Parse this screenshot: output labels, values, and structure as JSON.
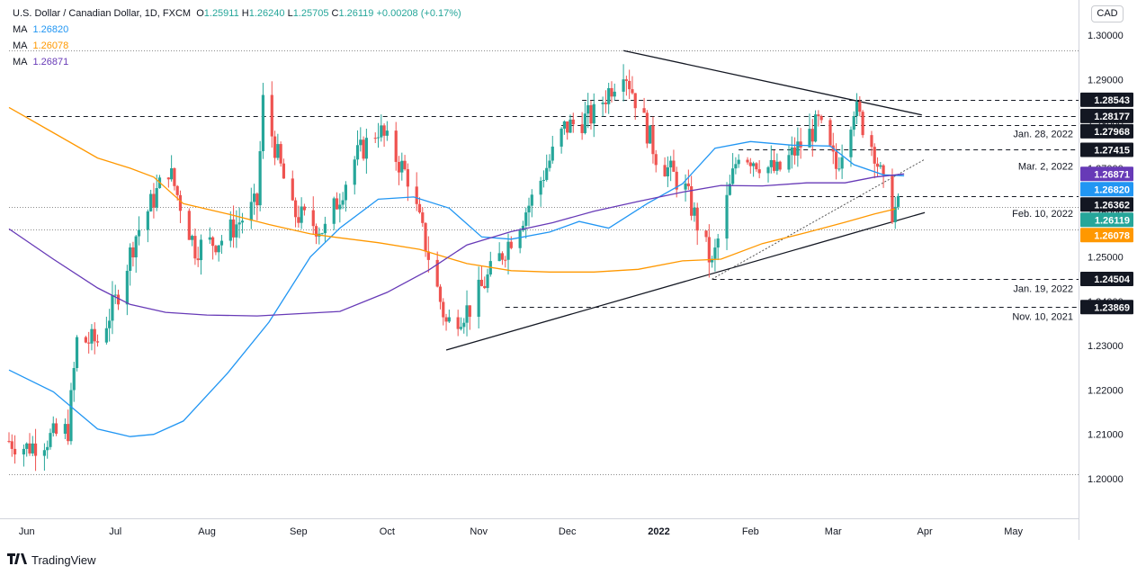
{
  "legend": {
    "symbol": "U.S. Dollar / Canadian Dollar, 1D, FXCM",
    "o": "1.25911",
    "h": "1.26240",
    "l": "1.25705",
    "c": "1.26119",
    "change": "+0.00208 (+0.17%)",
    "mas": [
      {
        "label": "MA",
        "value": "1.26820",
        "color": "#2196f3"
      },
      {
        "label": "MA",
        "value": "1.26078",
        "color": "#ff9800"
      },
      {
        "label": "MA",
        "value": "1.26871",
        "color": "#673ab7"
      }
    ]
  },
  "currency": "CAD",
  "footer": {
    "brand": "TradingView"
  },
  "chart_data": {
    "type": "candlestick",
    "y_axis": {
      "min": 1.195,
      "max": 1.305,
      "ticks": [
        "1.30000",
        "1.29000",
        "1.28000",
        "1.27000",
        "1.26000",
        "1.25000",
        "1.24000",
        "1.23000",
        "1.22000",
        "1.21000",
        "1.20000"
      ]
    },
    "x_axis": {
      "labels": [
        "Jun",
        "Jul",
        "Aug",
        "Sep",
        "Oct",
        "Nov",
        "Dec",
        "2022",
        "Feb",
        "Mar",
        "Apr",
        "May"
      ],
      "bold": [
        "2022"
      ]
    },
    "price_labels": [
      {
        "value": "1.28543",
        "bg": "#131722",
        "fg": "#ffffff",
        "price": 1.28543
      },
      {
        "value": "1.28177",
        "bg": "#131722",
        "fg": "#ffffff",
        "price": 1.28177
      },
      {
        "value": "1.27968",
        "bg": "#131722",
        "fg": "#ffffff",
        "price": 1.27968
      },
      {
        "value": "1.27415",
        "bg": "#131722",
        "fg": "#ffffff",
        "price": 1.27415
      },
      {
        "value": "1.26871",
        "bg": "#673ab7",
        "fg": "#ffffff",
        "price": 1.26871
      },
      {
        "value": "1.26820",
        "bg": "#2196f3",
        "fg": "#ffffff",
        "price": 1.2682
      },
      {
        "value": "1.26362",
        "bg": "#131722",
        "fg": "#ffffff",
        "price": 1.26362
      },
      {
        "value": "1.26119",
        "bg": "#26a69a",
        "fg": "#ffffff",
        "price": 1.26119
      },
      {
        "value": "1.26078",
        "bg": "#ff9800",
        "fg": "#ffffff",
        "price": 1.26078
      },
      {
        "value": "1.24504",
        "bg": "#131722",
        "fg": "#ffffff",
        "price": 1.24504
      },
      {
        "value": "1.23869",
        "bg": "#131722",
        "fg": "#ffffff",
        "price": 1.23869
      }
    ],
    "annotations": [
      {
        "text": "Jan. 28, 2022",
        "price": 1.2778
      },
      {
        "text": "Mar. 2, 2022",
        "price": 1.2705
      },
      {
        "text": "Feb. 10, 2022",
        "price": 1.2598
      },
      {
        "text": "Jan. 19, 2022",
        "price": 1.2429
      },
      {
        "text": "Nov. 10, 2021",
        "price": 1.2366
      }
    ],
    "hlines": [
      {
        "price": 1.28543,
        "from_date": "2021-12-06",
        "style": "dashed"
      },
      {
        "price": 1.28177,
        "from_date": "2021-06-01",
        "style": "dashed"
      },
      {
        "price": 1.27968,
        "from_date": "2021-11-29",
        "style": "dashed"
      },
      {
        "price": 1.27415,
        "from_date": "2022-01-28",
        "style": "dashed"
      },
      {
        "price": 1.26362,
        "from_date": "2022-02-10",
        "style": "dashed"
      },
      {
        "price": 1.24504,
        "from_date": "2022-01-19",
        "style": "dashed"
      },
      {
        "price": 1.23869,
        "from_date": "2021-11-10",
        "style": "dashed"
      },
      {
        "price": 1.2965,
        "from_date": "2021-05-26",
        "style": "dotted"
      },
      {
        "price": 1.26119,
        "from_date": "2021-05-26",
        "style": "dotted"
      },
      {
        "price": 1.25625,
        "from_date": "2021-05-26",
        "style": "dotted"
      },
      {
        "price": 1.201,
        "from_date": "2021-05-26",
        "style": "dotted"
      }
    ],
    "trendlines": [
      {
        "from": [
          "2021-12-20",
          1.2965
        ],
        "to": [
          "2022-03-31",
          1.282
        ],
        "style": "solid"
      },
      {
        "from": [
          "2021-10-21",
          1.229
        ],
        "to": [
          "2022-04-01",
          1.26
        ],
        "style": "solid"
      },
      {
        "from": [
          "2022-01-19",
          1.245
        ],
        "to": [
          "2022-04-01",
          1.272
        ],
        "style": "dotted"
      }
    ],
    "ma_series": [
      {
        "name": "MA 1.26820",
        "color": "#2196f3",
        "points": [
          [
            "2021-05-26",
            1.2245
          ],
          [
            "2021-06-10",
            1.2196
          ],
          [
            "2021-06-25",
            1.2112
          ],
          [
            "2021-07-06",
            1.2095
          ],
          [
            "2021-07-14",
            1.21
          ],
          [
            "2021-07-24",
            1.213
          ],
          [
            "2021-08-08",
            1.2238
          ],
          [
            "2021-08-22",
            1.2353
          ],
          [
            "2021-09-05",
            1.25
          ],
          [
            "2021-09-15",
            1.2565
          ],
          [
            "2021-09-28",
            1.263
          ],
          [
            "2021-10-10",
            1.2635
          ],
          [
            "2021-10-22",
            1.261
          ],
          [
            "2021-11-02",
            1.2545
          ],
          [
            "2021-11-12",
            1.254
          ],
          [
            "2021-11-25",
            1.2556
          ],
          [
            "2021-12-05",
            1.258
          ],
          [
            "2021-12-15",
            1.2565
          ],
          [
            "2021-12-28",
            1.262
          ],
          [
            "2022-01-09",
            1.2665
          ],
          [
            "2022-01-20",
            1.2745
          ],
          [
            "2022-02-01",
            1.276
          ],
          [
            "2022-02-15",
            1.2752
          ],
          [
            "2022-02-28",
            1.275
          ],
          [
            "2022-03-08",
            1.2708
          ],
          [
            "2022-03-18",
            1.2685
          ],
          [
            "2022-03-25",
            1.2683
          ]
        ]
      },
      {
        "name": "MA 1.26078",
        "color": "#ff9800",
        "points": [
          [
            "2021-05-26",
            1.2837
          ],
          [
            "2021-06-10",
            1.278
          ],
          [
            "2021-06-25",
            1.2723
          ],
          [
            "2021-07-06",
            1.27
          ],
          [
            "2021-07-14",
            1.268
          ],
          [
            "2021-07-24",
            1.262
          ],
          [
            "2021-08-08",
            1.2597
          ],
          [
            "2021-08-22",
            1.2573
          ],
          [
            "2021-09-05",
            1.2552
          ],
          [
            "2021-09-15",
            1.2543
          ],
          [
            "2021-09-28",
            1.2532
          ],
          [
            "2021-10-12",
            1.2517
          ],
          [
            "2021-10-28",
            1.2485
          ],
          [
            "2021-11-12",
            1.2469
          ],
          [
            "2021-11-25",
            1.2466
          ],
          [
            "2021-12-10",
            1.2466
          ],
          [
            "2021-12-25",
            1.2472
          ],
          [
            "2022-01-09",
            1.2491
          ],
          [
            "2022-01-22",
            1.2495
          ],
          [
            "2022-02-05",
            1.253
          ],
          [
            "2022-02-20",
            1.2555
          ],
          [
            "2022-03-05",
            1.2578
          ],
          [
            "2022-03-15",
            1.2597
          ],
          [
            "2022-03-22",
            1.2608
          ]
        ]
      },
      {
        "name": "MA 1.26871",
        "color": "#673ab7",
        "points": [
          [
            "2021-05-26",
            1.2563
          ],
          [
            "2021-06-10",
            1.2495
          ],
          [
            "2021-06-25",
            1.243
          ],
          [
            "2021-07-06",
            1.2393
          ],
          [
            "2021-07-18",
            1.2375
          ],
          [
            "2021-08-01",
            1.2369
          ],
          [
            "2021-08-18",
            1.2367
          ],
          [
            "2021-09-01",
            1.2372
          ],
          [
            "2021-09-15",
            1.2377
          ],
          [
            "2021-10-01",
            1.242
          ],
          [
            "2021-10-15",
            1.247
          ],
          [
            "2021-10-28",
            1.2527
          ],
          [
            "2021-11-12",
            1.2557
          ],
          [
            "2021-11-26",
            1.2577
          ],
          [
            "2021-12-10",
            1.2603
          ],
          [
            "2021-12-25",
            1.2625
          ],
          [
            "2022-01-09",
            1.2646
          ],
          [
            "2022-01-22",
            1.2661
          ],
          [
            "2022-02-05",
            1.266
          ],
          [
            "2022-02-20",
            1.2667
          ],
          [
            "2022-03-05",
            1.2667
          ],
          [
            "2022-03-15",
            1.268
          ],
          [
            "2022-03-25",
            1.2687
          ]
        ]
      }
    ]
  }
}
